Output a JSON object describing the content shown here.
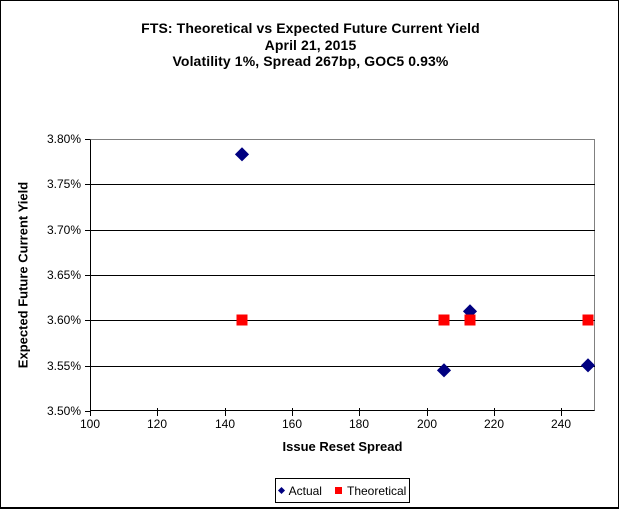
{
  "window": {
    "background": "#FFFFFF",
    "border_color": "#000000"
  },
  "chart_data": {
    "type": "scatter",
    "title_lines": [
      "FTS: Theoretical vs Expected Future Current Yield",
      "April 21, 2015",
      "Volatility 1%, Spread 267bp, GOC5 0.93%"
    ],
    "xlabel": "Issue Reset Spread",
    "ylabel": "Expected Future Current Yield",
    "xlim": [
      100,
      250
    ],
    "ylim": [
      3.5,
      3.8
    ],
    "x_ticks": [
      {
        "value": 100,
        "label": "100"
      },
      {
        "value": 120,
        "label": "120"
      },
      {
        "value": 140,
        "label": "140"
      },
      {
        "value": 160,
        "label": "160"
      },
      {
        "value": 180,
        "label": "180"
      },
      {
        "value": 200,
        "label": "200"
      },
      {
        "value": 220,
        "label": "220"
      },
      {
        "value": 240,
        "label": "240"
      }
    ],
    "y_ticks": [
      {
        "value": 3.8,
        "label": "3.80%"
      },
      {
        "value": 3.75,
        "label": "3.75%"
      },
      {
        "value": 3.7,
        "label": "3.70%"
      },
      {
        "value": 3.65,
        "label": "3.65%"
      },
      {
        "value": 3.6,
        "label": "3.60%"
      },
      {
        "value": 3.55,
        "label": "3.55%"
      },
      {
        "value": 3.5,
        "label": "3.50%"
      }
    ],
    "grid": "horizontal",
    "legend_position": "bottom-center",
    "series": [
      {
        "name": "Actual",
        "marker": "diamond",
        "color": "#000080",
        "points": [
          {
            "x": 145,
            "y": 3.783
          },
          {
            "x": 205,
            "y": 3.545
          },
          {
            "x": 213,
            "y": 3.61
          },
          {
            "x": 248,
            "y": 3.551
          }
        ]
      },
      {
        "name": "Theoretical",
        "marker": "square",
        "color": "#FF0000",
        "points": [
          {
            "x": 145,
            "y": 3.6
          },
          {
            "x": 205,
            "y": 3.6
          },
          {
            "x": 213,
            "y": 3.6
          },
          {
            "x": 248,
            "y": 3.6
          }
        ]
      }
    ]
  }
}
